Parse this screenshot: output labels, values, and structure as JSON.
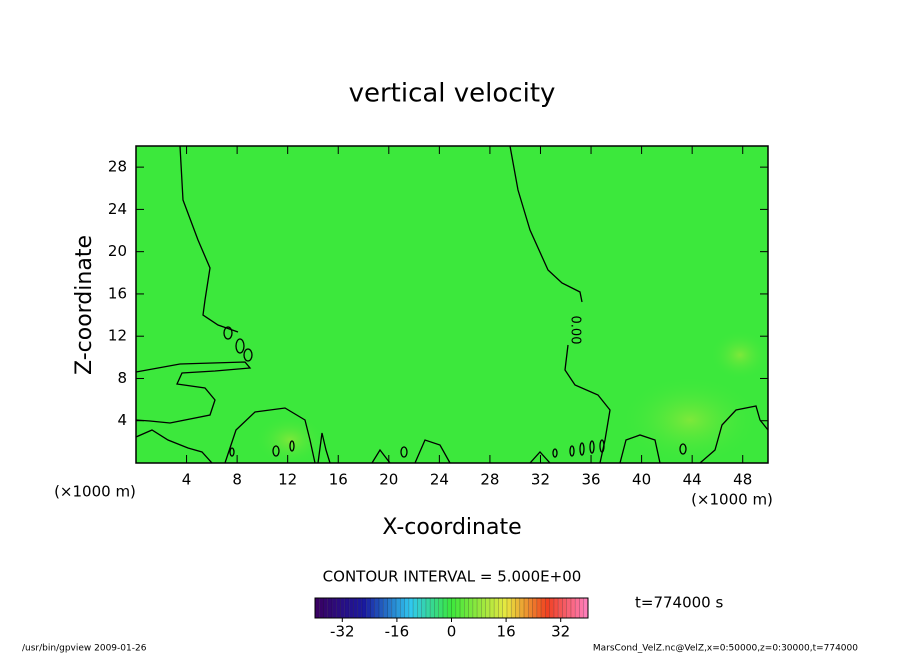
{
  "chart_data": {
    "type": "contour",
    "title": "vertical velocity",
    "x_label": "X-coordinate",
    "y_label": "Z-coordinate",
    "x_unit": "(×1000 m)",
    "y_unit": "(×1000 m)",
    "xlim": [
      0,
      50
    ],
    "ylim": [
      0,
      30
    ],
    "xticks": [
      4,
      8,
      12,
      16,
      20,
      24,
      28,
      32,
      36,
      40,
      44,
      48
    ],
    "yticks": [
      4,
      8,
      12,
      16,
      20,
      24,
      28
    ],
    "contour_levels": [
      {
        "value": 0,
        "label": "0.00"
      }
    ],
    "contour_interval_text": "CONTOUR INTERVAL = 5.000E+00",
    "colorbar": {
      "lim": [
        -40,
        40
      ],
      "ticks": [
        -32,
        -16,
        0,
        16,
        32
      ]
    },
    "time_text": "t=774000 s",
    "footer_left": "/usr/bin/gpview   2009-01-26",
    "footer_right": "MarsCond_VelZ.nc@VelZ,x=0:50000,z=0:30000,t=774000"
  }
}
